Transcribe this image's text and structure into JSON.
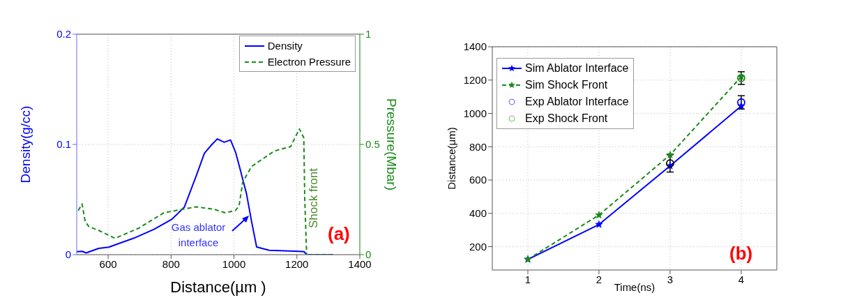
{
  "chart_data": [
    {
      "type": "line",
      "xlabel": "Distance(µm )",
      "ylabel": "Density(g/cc)",
      "y2label": "Pressure(Mbar)",
      "xlim": [
        500,
        1400
      ],
      "xticks": [
        600,
        800,
        1000,
        1200,
        1400
      ],
      "ylim": [
        0,
        0.2
      ],
      "yticks": [
        0,
        0.1,
        0.2
      ],
      "y2lim": [
        0,
        1
      ],
      "y2ticks": [
        0,
        0.5,
        1
      ],
      "grid": true,
      "legend": "top right",
      "marker": "none",
      "series": [
        {
          "name": "Density",
          "color": "#0000ff",
          "line_style": "solid",
          "x": [
            500,
            518,
            530,
            570,
            602,
            682,
            746,
            802,
            842,
            882,
            906,
            930,
            947,
            969,
            989,
            1005,
            1020,
            1040,
            1056,
            1072,
            1112,
            1207,
            1223,
            1231,
            1315
          ],
          "values": [
            0.0027,
            0.003,
            0.0016,
            0.0057,
            0.0068,
            0.015,
            0.023,
            0.032,
            0.043,
            0.073,
            0.092,
            0.1,
            0.105,
            0.102,
            0.104,
            0.093,
            0.077,
            0.055,
            0.03,
            0.007,
            0.004,
            0.003,
            0.0027,
            0,
            0
          ]
        },
        {
          "name": "Electron Pressure",
          "color": "#1a8a1a",
          "line_style": "dashed",
          "axis": "y2",
          "x": [
            505,
            517,
            527,
            539,
            570,
            622,
            697,
            777,
            880,
            936,
            972,
            1004,
            1016,
            1028,
            1056,
            1128,
            1180,
            1208,
            1222,
            1225,
            1231,
            1315
          ],
          "values": [
            0.2,
            0.23,
            0.15,
            0.127,
            0.11,
            0.074,
            0.12,
            0.19,
            0.217,
            0.206,
            0.19,
            0.2,
            0.22,
            0.33,
            0.4,
            0.47,
            0.49,
            0.57,
            0.53,
            0.25,
            0,
            0
          ]
        }
      ],
      "annotations": [
        {
          "text": "Gas ablator interface",
          "x": 1042,
          "y": 0.034
        },
        "Shock front",
        "(a)"
      ]
    },
    {
      "type": "line",
      "xlabel": "Time(ns)",
      "ylabel": "Distance(μm)",
      "xlim": [
        0.5,
        4.5
      ],
      "xticks": [
        1,
        2,
        3,
        4
      ],
      "ylim": [
        60,
        1400
      ],
      "yticks": [
        200,
        400,
        600,
        800,
        1000,
        1200,
        1400
      ],
      "grid": true,
      "legend": "top left",
      "series": [
        {
          "name": "Sim Ablator Interface",
          "color": "#0000ff",
          "line_style": "solid",
          "marker": "star",
          "x": [
            1,
            2,
            3,
            4
          ],
          "values": [
            124,
            333,
            685,
            1044
          ]
        },
        {
          "name": "Sim Shock Front",
          "color": "#1a8a1a",
          "line_style": "dashed",
          "marker": "star",
          "x": [
            1,
            2,
            3,
            4
          ],
          "values": [
            124,
            390,
            751,
            1220
          ]
        },
        {
          "name": "Exp Ablator Interface",
          "type": "scatter",
          "color": "#0000ff",
          "marker": "circle",
          "x": [
            3,
            4
          ],
          "values": [
            700,
            1066
          ],
          "colors": [
            "#000000",
            "#0000ff"
          ],
          "errors": [
            52,
            40
          ]
        },
        {
          "name": "Exp Shock Front",
          "type": "scatter",
          "color": "#1a8a1a",
          "marker": "circle",
          "x": [
            4
          ],
          "values": [
            1212
          ],
          "errors": [
            38
          ]
        }
      ],
      "annotations": [
        "(b)"
      ]
    }
  ]
}
